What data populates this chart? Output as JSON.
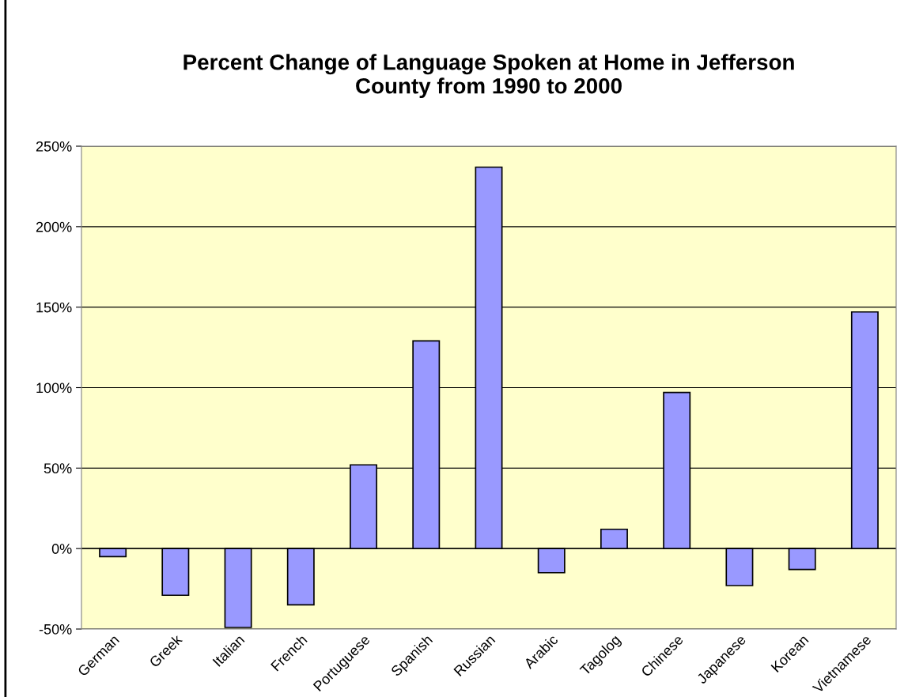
{
  "chart_data": {
    "type": "bar",
    "title": "Percent Change of Language Spoken at Home in Jefferson\nCounty from 1990 to 2000",
    "categories": [
      "German",
      "Greek",
      "Italian",
      "French",
      "Portuguese",
      "Spanish",
      "Russian",
      "Arabic",
      "Tagolog",
      "Chinese",
      "Japanese",
      "Korean",
      "Vietnamese"
    ],
    "values": [
      -5,
      -29,
      -49,
      -35,
      52,
      129,
      237,
      -15,
      12,
      97,
      -23,
      -13,
      147
    ],
    "color": "#9999ff",
    "ylim": [
      -50,
      250
    ],
    "yticks": [
      {
        "value": -50,
        "label": "-50%"
      },
      {
        "value": 0,
        "label": "0%"
      },
      {
        "value": 50,
        "label": "50%"
      },
      {
        "value": 100,
        "label": "100%"
      },
      {
        "value": 150,
        "label": "150%"
      },
      {
        "value": 200,
        "label": "200%"
      },
      {
        "value": 250,
        "label": "250%"
      }
    ],
    "grid": "y",
    "legend": false
  }
}
